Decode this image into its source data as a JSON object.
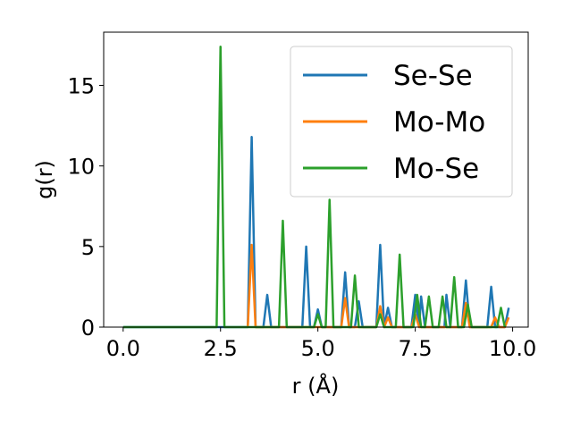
{
  "chart_data": {
    "type": "line",
    "xlabel": "r (Å)",
    "ylabel": "g(r)",
    "xlim": [
      -0.5,
      10.4
    ],
    "ylim": [
      0,
      18.3
    ],
    "xticks": [
      0.0,
      2.5,
      5.0,
      7.5,
      10.0
    ],
    "xtick_labels": [
      "0.0",
      "2.5",
      "5.0",
      "7.5",
      "10.0"
    ],
    "yticks": [
      0,
      5,
      10,
      15
    ],
    "ytick_labels": [
      "0",
      "5",
      "10",
      "15"
    ],
    "legend_position": "top-right",
    "grid": false,
    "series": [
      {
        "name": "Se-Se",
        "color": "#1f77b4",
        "points": [
          [
            0,
            0
          ],
          [
            3.2,
            0
          ],
          [
            3.3,
            11.8
          ],
          [
            3.4,
            0
          ],
          [
            3.6,
            0
          ],
          [
            3.7,
            2.0
          ],
          [
            3.8,
            0
          ],
          [
            4.6,
            0
          ],
          [
            4.7,
            5.0
          ],
          [
            4.8,
            0
          ],
          [
            4.9,
            0
          ],
          [
            5.0,
            1.1
          ],
          [
            5.1,
            0
          ],
          [
            5.6,
            0
          ],
          [
            5.7,
            3.4
          ],
          [
            5.8,
            0
          ],
          [
            5.95,
            0
          ],
          [
            6.05,
            1.6
          ],
          [
            6.15,
            0
          ],
          [
            6.5,
            0
          ],
          [
            6.6,
            5.1
          ],
          [
            6.7,
            0
          ],
          [
            6.8,
            1.2
          ],
          [
            6.9,
            0
          ],
          [
            7.4,
            0
          ],
          [
            7.5,
            2.0
          ],
          [
            7.6,
            0
          ],
          [
            7.65,
            1.9
          ],
          [
            7.75,
            0
          ],
          [
            8.25,
            0
          ],
          [
            8.3,
            2.0
          ],
          [
            8.4,
            0
          ],
          [
            8.7,
            0
          ],
          [
            8.8,
            2.9
          ],
          [
            8.9,
            0
          ],
          [
            9.35,
            0
          ],
          [
            9.45,
            2.5
          ],
          [
            9.55,
            0
          ],
          [
            9.8,
            0
          ],
          [
            9.9,
            1.2
          ]
        ]
      },
      {
        "name": "Mo-Mo",
        "color": "#ff7f0e",
        "points": [
          [
            3.2,
            0
          ],
          [
            3.3,
            5.1
          ],
          [
            3.4,
            0
          ],
          [
            5.6,
            0
          ],
          [
            5.7,
            1.8
          ],
          [
            5.8,
            0
          ],
          [
            6.5,
            0
          ],
          [
            6.6,
            1.3
          ],
          [
            6.7,
            0
          ],
          [
            6.8,
            0.6
          ],
          [
            6.9,
            0
          ],
          [
            7.4,
            0
          ],
          [
            7.5,
            0.8
          ],
          [
            7.6,
            0
          ],
          [
            8.7,
            0
          ],
          [
            8.8,
            1.5
          ],
          [
            8.9,
            0
          ],
          [
            9.45,
            0
          ],
          [
            9.55,
            0.6
          ],
          [
            9.65,
            0
          ],
          [
            9.8,
            0
          ],
          [
            9.9,
            0.6
          ]
        ]
      },
      {
        "name": "Mo-Se",
        "color": "#2ca02c",
        "points": [
          [
            0,
            0
          ],
          [
            2.4,
            0
          ],
          [
            2.5,
            17.4
          ],
          [
            2.6,
            0
          ],
          [
            4.0,
            0
          ],
          [
            4.1,
            6.6
          ],
          [
            4.2,
            0
          ],
          [
            4.9,
            0
          ],
          [
            5.0,
            0.8
          ],
          [
            5.1,
            0
          ],
          [
            5.2,
            0
          ],
          [
            5.3,
            7.9
          ],
          [
            5.4,
            0
          ],
          [
            5.85,
            0
          ],
          [
            5.95,
            3.2
          ],
          [
            6.05,
            0
          ],
          [
            6.5,
            0
          ],
          [
            6.6,
            0.8
          ],
          [
            6.7,
            0
          ],
          [
            7.0,
            0
          ],
          [
            7.1,
            4.5
          ],
          [
            7.2,
            0
          ],
          [
            7.45,
            0
          ],
          [
            7.55,
            2.0
          ],
          [
            7.65,
            0
          ],
          [
            7.75,
            0
          ],
          [
            7.85,
            1.9
          ],
          [
            7.95,
            0
          ],
          [
            8.1,
            0
          ],
          [
            8.2,
            1.9
          ],
          [
            8.3,
            0
          ],
          [
            8.4,
            0
          ],
          [
            8.5,
            3.1
          ],
          [
            8.6,
            0
          ],
          [
            8.75,
            0
          ],
          [
            8.85,
            1.4
          ],
          [
            8.95,
            0
          ],
          [
            9.6,
            0
          ],
          [
            9.7,
            1.2
          ],
          [
            9.8,
            0
          ]
        ]
      }
    ]
  }
}
